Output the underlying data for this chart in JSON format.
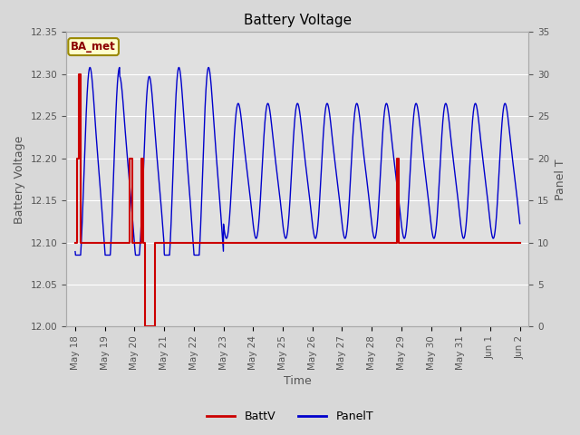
{
  "title": "Battery Voltage",
  "xlabel": "Time",
  "ylabel_left": "Battery Voltage",
  "ylabel_right": "Panel T",
  "annotation": "BA_met",
  "ylim_left": [
    12.0,
    12.35
  ],
  "ylim_right": [
    0,
    35
  ],
  "yticks_left": [
    12.0,
    12.05,
    12.1,
    12.15,
    12.2,
    12.25,
    12.3,
    12.35
  ],
  "yticks_right": [
    0,
    5,
    10,
    15,
    20,
    25,
    30,
    35
  ],
  "fig_bg": "#d8d8d8",
  "inner_bg": "#e0e0e0",
  "batt_color": "#cc0000",
  "panel_color": "#0000cc",
  "legend_batt": "BattV",
  "legend_panel": "PanelT",
  "grid_color": "#ffffff",
  "tick_color": "#555555",
  "title_fontsize": 11,
  "label_fontsize": 9,
  "tick_fontsize": 7.5
}
